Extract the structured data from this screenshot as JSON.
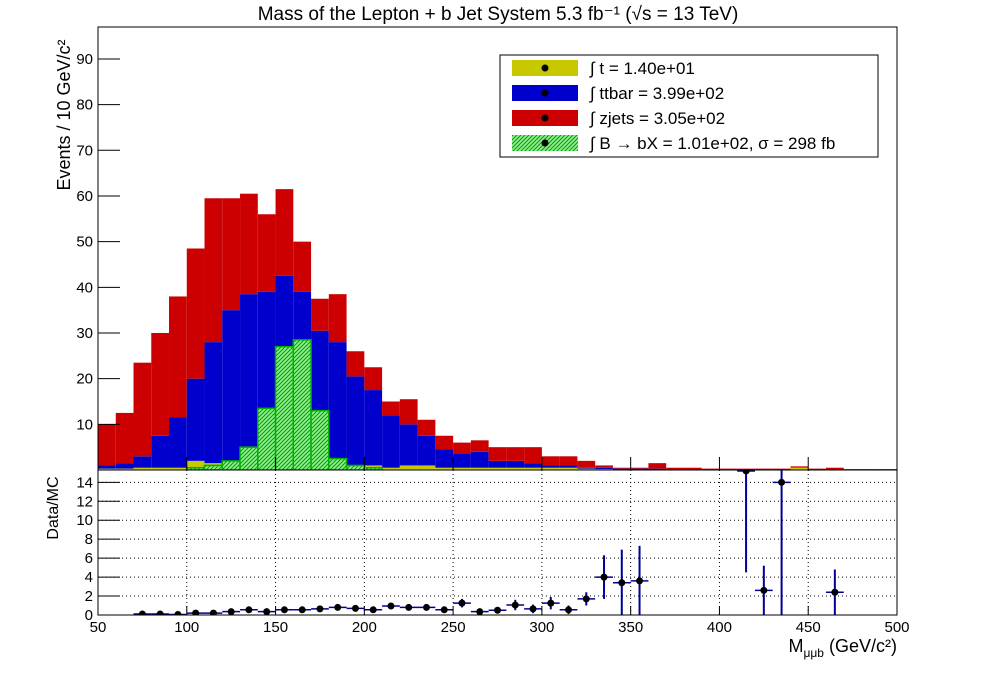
{
  "chart_data": {
    "type": "stacked-histogram",
    "title": "Mass of the Lepton + b Jet System 5.3 fb⁻¹ (√s = 13 TeV)",
    "y_label": "Events / 10 GeV/c²",
    "x_label": {
      "main": "M",
      "sub": "μμb",
      "unit": "(GeV/c²)"
    },
    "bins": [
      50,
      60,
      70,
      80,
      90,
      100,
      110,
      120,
      130,
      140,
      150,
      160,
      170,
      180,
      190,
      200,
      210,
      220,
      230,
      240,
      250,
      260,
      270,
      280,
      290,
      300,
      310,
      320,
      330,
      340,
      350,
      360,
      370,
      380,
      390,
      400,
      410,
      420,
      430,
      440,
      450,
      460,
      470,
      480,
      490,
      500
    ],
    "xlim": [
      50,
      500
    ],
    "xticks": [
      50,
      100,
      150,
      200,
      250,
      300,
      350,
      400,
      450,
      500
    ],
    "ylim": [
      0,
      97
    ],
    "yticks": [
      10,
      20,
      30,
      40,
      50,
      60,
      70,
      80,
      90
    ],
    "series": [
      {
        "name": "∫ t = 1.40e+01",
        "color": "#c8c800",
        "values": [
          0.3,
          0.3,
          0.5,
          0.5,
          0.5,
          2,
          1.5,
          1,
          1,
          1,
          1,
          1,
          1,
          1,
          1,
          1,
          0.5,
          1,
          1,
          0.5,
          0.5,
          0.5,
          0.5,
          0.5,
          0.5,
          0.5,
          0.5,
          0.3,
          0.2,
          0.1,
          0.1,
          0.1,
          0.1,
          0.1,
          0.1,
          0.1,
          0,
          0,
          0,
          0.5,
          0,
          0,
          0,
          0,
          0
        ]
      },
      {
        "name": "∫ ttbar = 3.99e+02",
        "color": "#0000cc",
        "values": [
          0.7,
          1.2,
          2.5,
          7,
          11,
          18,
          26.5,
          34,
          37.5,
          38,
          41.5,
          38,
          29.5,
          27,
          19.5,
          16.5,
          11.5,
          9,
          6.5,
          4,
          3,
          3.5,
          1.5,
          1.5,
          1,
          0.5,
          0.5,
          0.2,
          0.3,
          0.2,
          0.2,
          0.2,
          0.1,
          0.1,
          0.1,
          0,
          0.1,
          0.1,
          0.1,
          0.1,
          0.1,
          0.1,
          0,
          0,
          0
        ]
      },
      {
        "name": "∫ zjets = 3.05e+02",
        "color": "#cc0000",
        "values": [
          9,
          11,
          20.5,
          22.5,
          26.5,
          28.5,
          31.5,
          24.5,
          22,
          17,
          19,
          11,
          7,
          10.5,
          5.5,
          5,
          3,
          5.5,
          3.5,
          3,
          2.5,
          2.5,
          3,
          3,
          3.5,
          2,
          2,
          1.5,
          0.5,
          0.2,
          0.2,
          1.2,
          0.3,
          0.3,
          0.1,
          0.2,
          0.2,
          0.2,
          0.2,
          0.2,
          0.2,
          0.4,
          0.2,
          0.2,
          0.2
        ]
      }
    ],
    "signal": {
      "name": "∫ B → bX = 1.01e+02, σ = 298 fb",
      "color": "#00b000",
      "values": [
        0,
        0,
        0,
        0,
        0,
        0.5,
        1,
        2,
        5,
        13.5,
        27,
        28.5,
        13,
        2.5,
        1,
        0.5,
        0,
        0,
        0,
        0,
        0,
        0,
        0,
        0,
        0,
        0,
        0,
        0,
        0,
        0,
        0,
        0,
        0,
        0,
        0,
        0,
        0,
        0,
        0,
        0,
        0,
        0,
        0,
        0,
        0
      ]
    },
    "ratio": {
      "type": "scatter",
      "y_label": "Data/MC",
      "ylim": [
        0,
        15.3
      ],
      "yticks": [
        0,
        2,
        4,
        6,
        8,
        10,
        12,
        14
      ],
      "grid": true,
      "xerr": 5,
      "x": [
        75,
        85,
        95,
        105,
        115,
        125,
        135,
        145,
        155,
        165,
        175,
        185,
        195,
        205,
        215,
        225,
        235,
        245,
        255,
        265,
        275,
        285,
        295,
        305,
        315,
        325,
        335,
        345,
        355,
        415,
        425,
        435,
        465
      ],
      "values": [
        0.1,
        0.1,
        0.05,
        0.2,
        0.2,
        0.35,
        0.55,
        0.35,
        0.55,
        0.55,
        0.65,
        0.8,
        0.7,
        0.55,
        0.95,
        0.8,
        0.8,
        0.55,
        1.25,
        0.35,
        0.5,
        1.05,
        0.65,
        1.25,
        0.55,
        1.7,
        4.0,
        3.4,
        3.6,
        15.2,
        2.6,
        14,
        2.4
      ],
      "errors": [
        0.05,
        0.05,
        0.05,
        0.08,
        0.08,
        0.1,
        0.12,
        0.1,
        0.12,
        0.12,
        0.15,
        0.18,
        0.18,
        0.18,
        0.25,
        0.25,
        0.28,
        0.25,
        0.45,
        0.25,
        0.35,
        0.55,
        0.45,
        0.65,
        0.45,
        0.7,
        2.3,
        3.5,
        3.7,
        10.7,
        2.6,
        14,
        2.4
      ]
    }
  }
}
